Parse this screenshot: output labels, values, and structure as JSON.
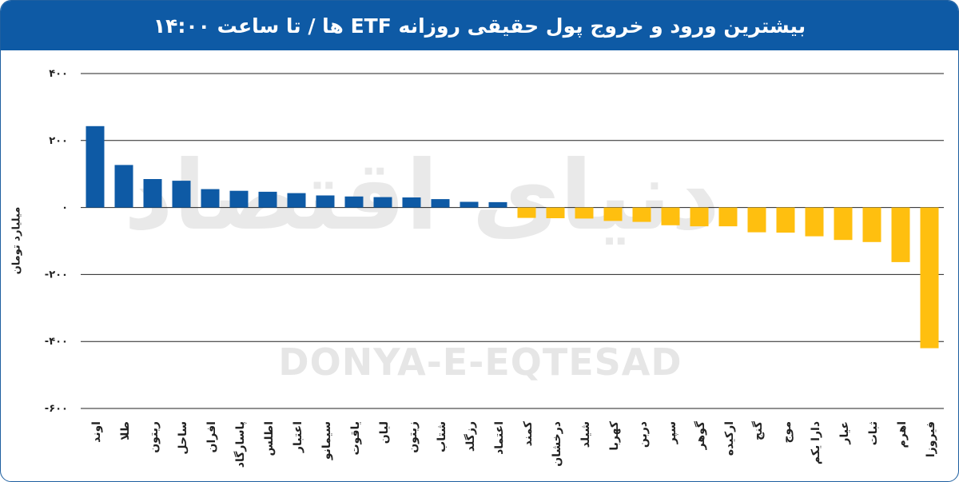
{
  "title": "بیشترین ورود و خروج پول حقیقی روزانه ETF ها / تا ساعت ۱۴:۰۰",
  "watermark": {
    "fa": "دنیای اقتصاد",
    "en": "DONYA-E-EQTESAD"
  },
  "colors": {
    "header": "#0e5aa5",
    "positive": "#0e5aa5",
    "negative": "#ffbf0f",
    "grid": "#222222"
  },
  "chart_data": {
    "type": "bar",
    "title": "بیشترین ورود و خروج پول حقیقی روزانه ETF ها / تا ساعت ۱۴:۰۰",
    "xlabel": "",
    "ylabel": "میلیارد تومان",
    "ylim": [
      -600,
      400
    ],
    "yticks": [
      400,
      200,
      0,
      -200,
      -400,
      -600
    ],
    "ytick_labels": [
      "۴۰۰",
      "۲۰۰",
      "۰",
      "-۲۰۰",
      "-۴۰۰",
      "-۶۰۰"
    ],
    "grid": true,
    "categories": [
      "اوند",
      "طلا",
      "ریتون",
      "ساحل",
      "افران",
      "پاسارگاد",
      "اطلس",
      "اعتبار",
      "سیمانو",
      "یاقوت",
      "لیان",
      "زیتون",
      "شتاب",
      "رزگلد",
      "اعتماد",
      "کمند",
      "درخشان",
      "شیلد",
      "کهربا",
      "دربن",
      "سپر",
      "گوهر",
      "ارکیده",
      "گنج",
      "موج",
      "دارا یکم",
      "عیار",
      "ثبات",
      "اهرم",
      "فیروزا"
    ],
    "values": [
      243,
      127,
      85,
      80,
      55,
      50,
      47,
      43,
      36,
      33,
      31,
      30,
      25,
      17,
      16,
      -31,
      -32,
      -33,
      -40,
      -43,
      -53,
      -56,
      -56,
      -74,
      -75,
      -86,
      -97,
      -103,
      -163,
      -420
    ]
  }
}
